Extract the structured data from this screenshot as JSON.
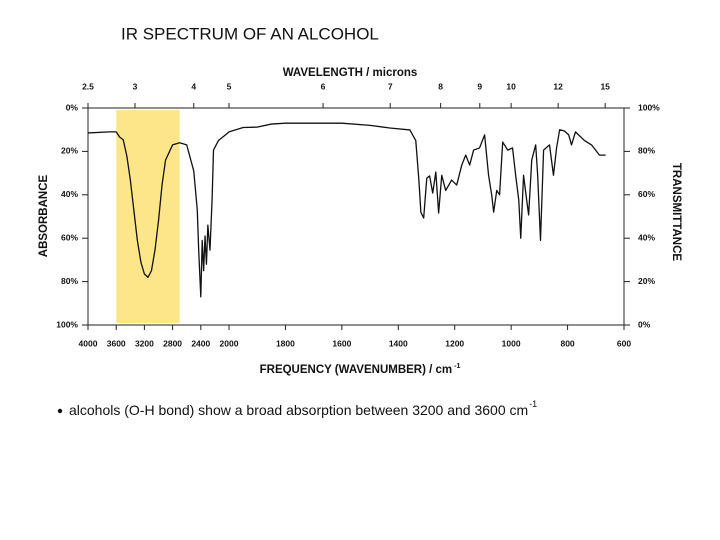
{
  "chart_data": {
    "type": "line",
    "title": "IR SPECTRUM OF AN ALCOHOL",
    "x_label": "FREQUENCY (WAVENUMBER) / cm",
    "x_label_sup": "-1",
    "x2_label": "WAVELENGTH / microns",
    "y_label": "TRANSMITTANCE",
    "y2_label": "ABSORBANCE",
    "annotation": "alcohols (O-H bond) show a broad absorption between 3200 and 3600 cm",
    "annotation_sup": "-1",
    "xlim": [
      4000,
      600
    ],
    "xscale_break": 2000,
    "xticks": [
      4000,
      3600,
      3200,
      2800,
      2400,
      2000,
      1800,
      1600,
      1400,
      1200,
      1000,
      800,
      600
    ],
    "x2ticks": [
      2.5,
      3,
      4,
      5,
      6,
      7,
      8,
      9,
      10,
      12,
      15
    ],
    "ylim": [
      0,
      100
    ],
    "yticks": [
      {
        "value": 0,
        "label": "0%"
      },
      {
        "value": 20,
        "label": "20%"
      },
      {
        "value": 40,
        "label": "40%"
      },
      {
        "value": 60,
        "label": "60%"
      },
      {
        "value": 80,
        "label": "80%"
      },
      {
        "value": 100,
        "label": "100%"
      }
    ],
    "y2lim": [
      100,
      0
    ],
    "y2ticks": [
      {
        "value": 0,
        "label": "0%"
      },
      {
        "value": 20,
        "label": "20%"
      },
      {
        "value": 40,
        "label": "40%"
      },
      {
        "value": 60,
        "label": "60%"
      },
      {
        "value": 80,
        "label": "80%"
      },
      {
        "value": 100,
        "label": "100%"
      }
    ],
    "highlight": {
      "x": [
        3600,
        2700
      ],
      "color": "#fde58a"
    },
    "grid": false,
    "series": [
      {
        "name": "spectrum",
        "color": "#111111",
        "x": [
          4000,
          3700,
          3600,
          3550,
          3500,
          3450,
          3400,
          3350,
          3300,
          3250,
          3200,
          3150,
          3100,
          3050,
          3000,
          2950,
          2900,
          2800,
          2700,
          2600,
          2500,
          2450,
          2430,
          2400,
          2380,
          2360,
          2340,
          2320,
          2300,
          2270,
          2240,
          2220,
          2150,
          2050,
          2000,
          1950,
          1900,
          1850,
          1800,
          1600,
          1500,
          1430,
          1359,
          1338,
          1327,
          1320,
          1310,
          1299,
          1289,
          1278,
          1267,
          1257,
          1246,
          1232,
          1211,
          1193,
          1175,
          1161,
          1147,
          1133,
          1112,
          1094,
          1080,
          1069,
          1062,
          1051,
          1041,
          1030,
          1012,
          995,
          984,
          973,
          966,
          956,
          945,
          938,
          927,
          913,
          906,
          896,
          885,
          864,
          850,
          839,
          828,
          811,
          796,
          786,
          772,
          740,
          715,
          687,
          665
        ],
        "values": [
          88.5,
          89,
          89,
          86.6,
          85.3,
          78,
          67,
          53,
          39,
          29,
          23.5,
          22,
          25,
          34.5,
          48,
          64.5,
          76,
          83,
          84,
          83,
          71,
          53,
          34.5,
          13,
          39,
          25,
          41,
          28,
          46,
          34.5,
          57.6,
          80.6,
          85,
          87.6,
          89,
          91,
          91.2,
          92.6,
          93,
          93,
          92,
          90.8,
          89.9,
          85,
          66.8,
          52,
          49.3,
          67.7,
          68.7,
          60.8,
          70.5,
          51.6,
          69,
          62,
          66.8,
          64.5,
          73.7,
          78.3,
          73.7,
          80.6,
          81.6,
          87.6,
          69,
          60,
          52,
          62,
          60,
          84.3,
          80.6,
          81.6,
          69,
          57.6,
          40,
          69,
          57.6,
          50.7,
          76,
          83,
          69,
          39,
          80.6,
          83,
          69,
          81.6,
          90,
          89.4,
          87.6,
          83,
          89,
          85,
          83,
          78.3,
          78.3
        ]
      }
    ]
  }
}
